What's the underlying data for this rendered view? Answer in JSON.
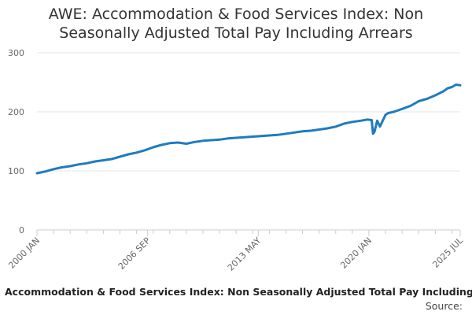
{
  "chart_data": {
    "type": "line",
    "title_lines": [
      "AWE: Accommodation & Food Services Index: Non",
      "Seasonally Adjusted Total Pay Including Arrears"
    ],
    "legend_label": "Accommodation & Food Services Index: Non Seasonally Adjusted Total Pay Including",
    "source_label": "Source:",
    "ylim": [
      0,
      300
    ],
    "yticks": [
      0,
      100,
      200,
      300
    ],
    "xlim": [
      "2000-01",
      "2025-07"
    ],
    "xtick_labels": [
      "2000 JAN",
      "2006 SEP",
      "2013 MAY",
      "2020 JAN",
      "2025 JUL"
    ],
    "xtick_dates": [
      "2000-01",
      "2006-09",
      "2013-05",
      "2020-01",
      "2025-07"
    ],
    "grid": true,
    "colors": {
      "line": "#1f7bbf",
      "grid": "#e6e6e6",
      "axis": "#cccccc",
      "text": "#666666"
    },
    "series": [
      {
        "x": [
          "2000-01",
          "2000-07",
          "2001-01",
          "2001-07",
          "2002-01",
          "2002-07",
          "2003-01",
          "2003-07",
          "2004-01",
          "2004-07",
          "2005-01",
          "2005-07",
          "2006-01",
          "2006-07",
          "2007-01",
          "2007-07",
          "2008-01",
          "2008-07",
          "2009-01",
          "2009-07",
          "2010-01",
          "2010-07",
          "2011-01",
          "2011-07",
          "2012-01",
          "2012-07",
          "2013-01",
          "2013-07",
          "2014-01",
          "2014-07",
          "2015-01",
          "2015-07",
          "2016-01",
          "2016-07",
          "2017-01",
          "2017-07",
          "2018-01",
          "2018-07",
          "2019-01",
          "2019-07",
          "2019-12",
          "2020-03",
          "2020-04",
          "2020-05",
          "2020-07",
          "2020-09",
          "2020-11",
          "2021-01",
          "2021-03",
          "2021-07",
          "2022-01",
          "2022-07",
          "2023-01",
          "2023-07",
          "2024-01",
          "2024-07",
          "2024-10",
          "2025-01",
          "2025-04",
          "2025-07"
        ],
        "values": [
          96,
          99,
          103,
          106,
          108,
          111,
          113,
          116,
          118,
          120,
          124,
          128,
          131,
          135,
          140,
          144,
          147,
          148,
          146,
          149,
          151,
          152,
          153,
          155,
          156,
          157,
          158,
          159,
          160,
          161,
          163,
          165,
          167,
          168,
          170,
          172,
          175,
          180,
          183,
          185,
          187,
          186,
          163,
          166,
          185,
          175,
          185,
          195,
          198,
          200,
          205,
          210,
          218,
          222,
          228,
          235,
          240,
          242,
          246,
          245
        ]
      }
    ]
  }
}
